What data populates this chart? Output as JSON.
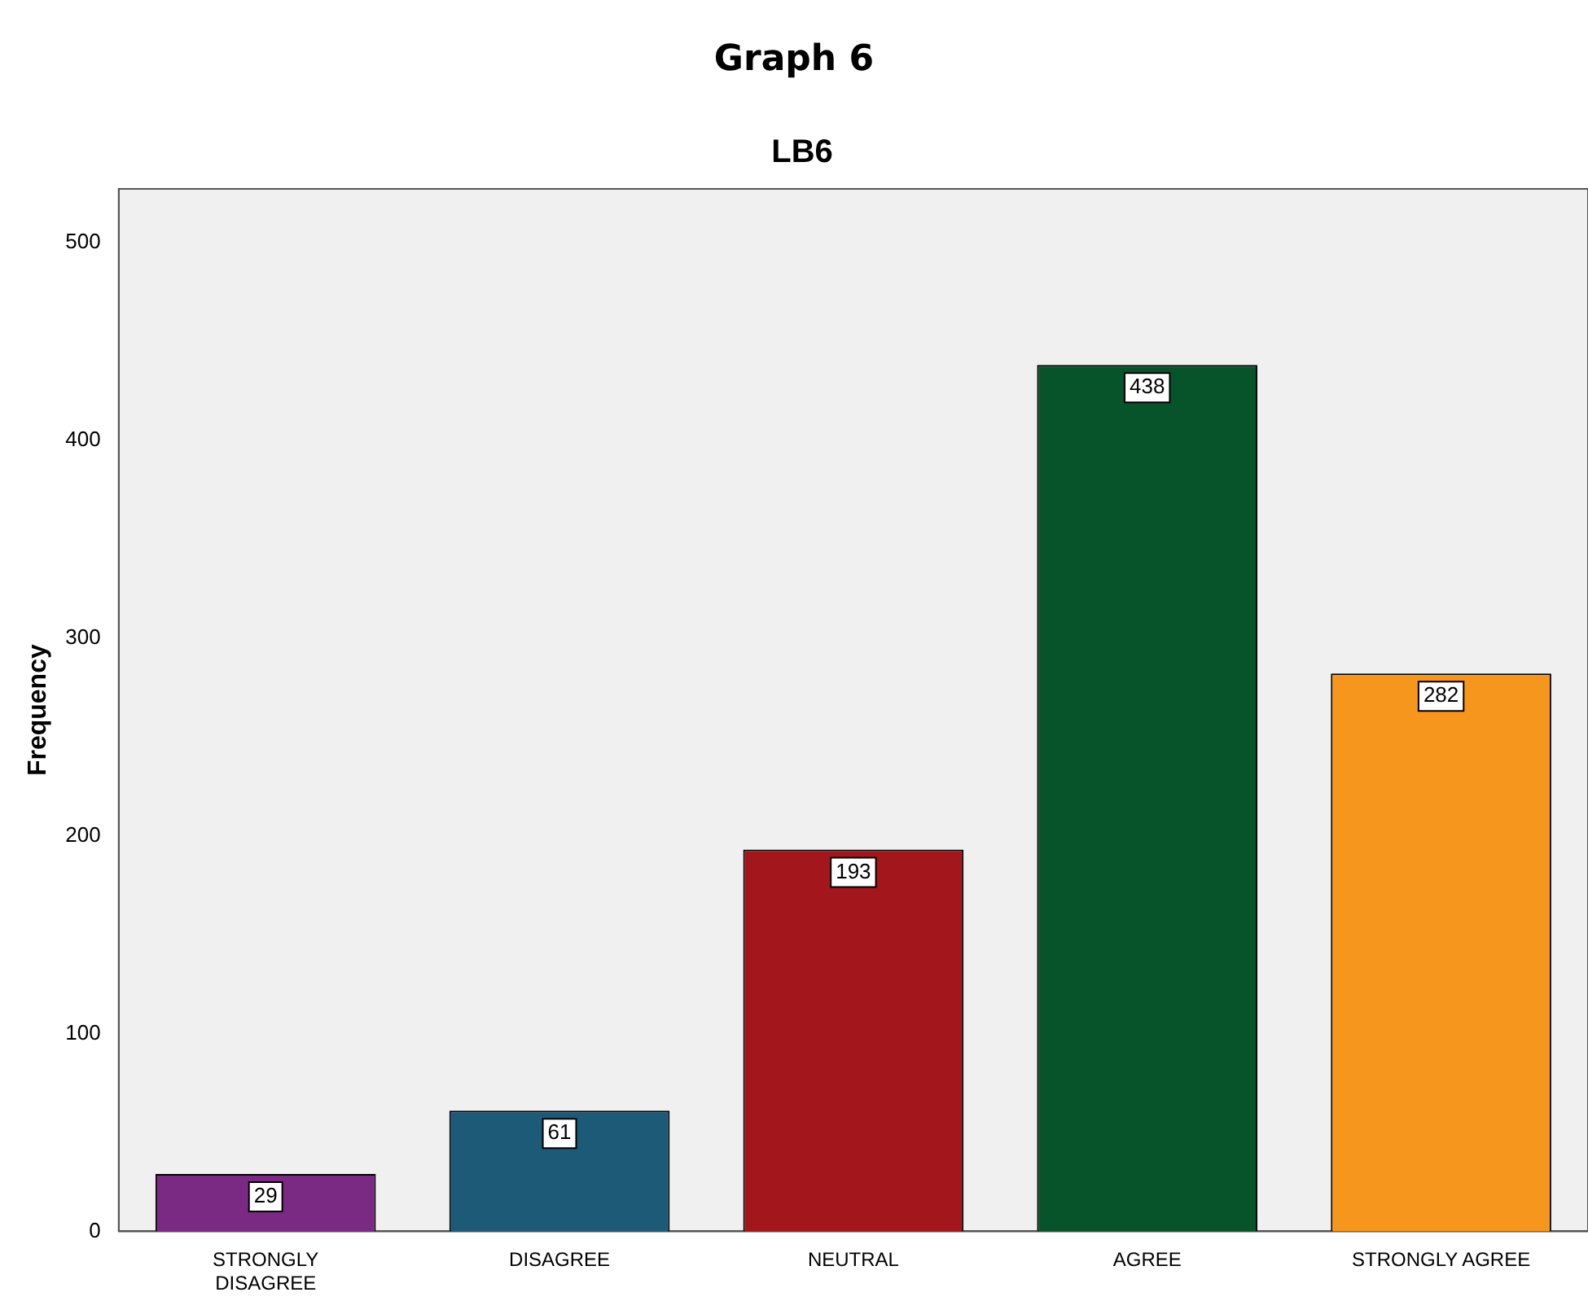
{
  "chart_data": {
    "type": "bar",
    "title": "Graph 6",
    "subtitle": "LB6",
    "ylabel": "Frequency",
    "categories": [
      "STRONGLY DISAGREE",
      "DISAGREE",
      "NEUTRAL",
      "AGREE",
      "STRONGLY AGREE"
    ],
    "values": [
      29,
      61,
      193,
      438,
      282
    ],
    "colors": [
      "#7b2a84",
      "#1d5a78",
      "#a3161b",
      "#07532a",
      "#f7961d"
    ],
    "ylim": [
      0,
      527
    ],
    "yticks": [
      0,
      100,
      200,
      300,
      400,
      500
    ],
    "grid": false,
    "legend": false,
    "data_labels": true
  }
}
